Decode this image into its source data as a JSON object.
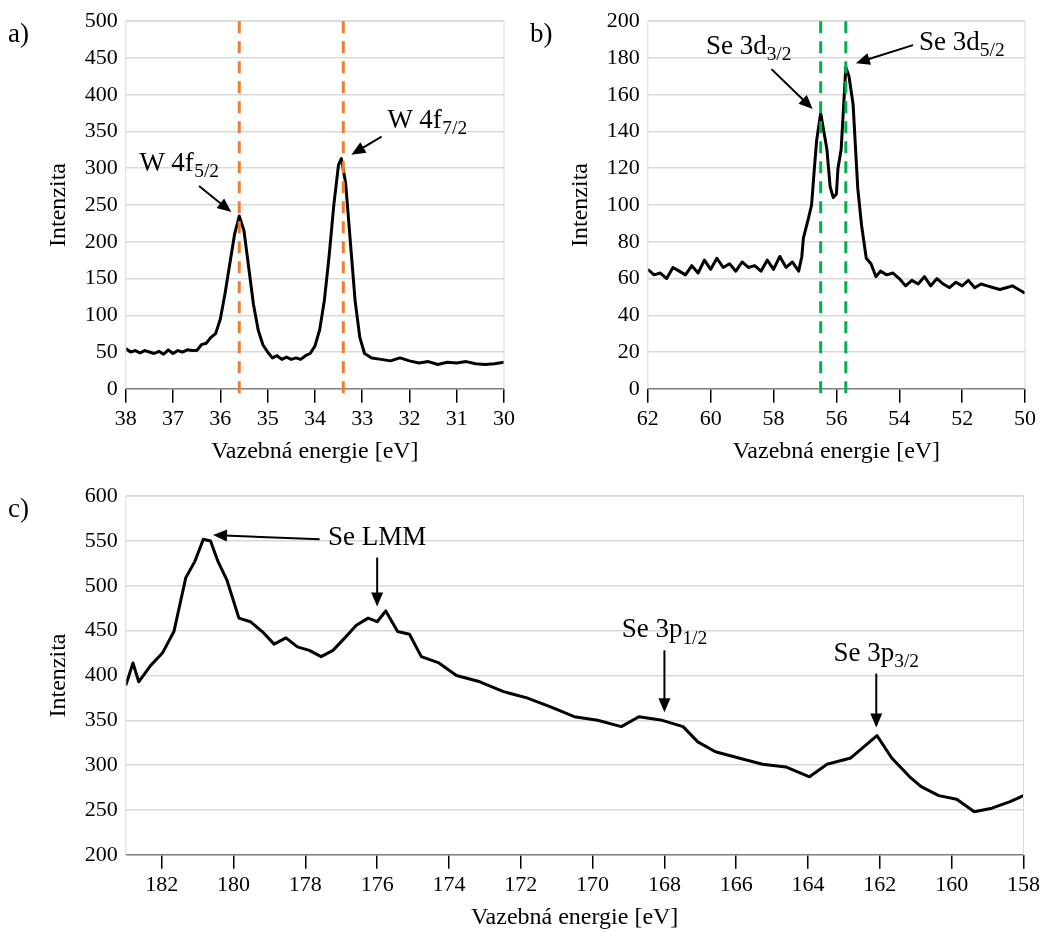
{
  "chart_data": [
    {
      "type": "line",
      "title": "a)",
      "xlabel": "Vazebná energie [eV]",
      "ylabel": "Intenzita",
      "grid": "y",
      "xlim": [
        38,
        30
      ],
      "xticks": [
        38,
        37,
        36,
        35,
        34,
        33,
        32,
        31,
        30
      ],
      "ylim": [
        0,
        500
      ],
      "yticks": [
        0,
        50,
        100,
        150,
        200,
        250,
        300,
        350,
        400,
        450,
        500
      ],
      "x": [
        38.0,
        37.9,
        37.8,
        37.7,
        37.6,
        37.5,
        37.4,
        37.3,
        37.2,
        37.1,
        37.0,
        36.9,
        36.8,
        36.7,
        36.6,
        36.5,
        36.4,
        36.3,
        36.2,
        36.1,
        36.0,
        35.9,
        35.8,
        35.7,
        35.6,
        35.5,
        35.4,
        35.3,
        35.2,
        35.1,
        35.0,
        34.9,
        34.8,
        34.7,
        34.6,
        34.5,
        34.4,
        34.3,
        34.2,
        34.1,
        34.0,
        33.9,
        33.8,
        33.7,
        33.6,
        33.5,
        33.44,
        33.35,
        33.25,
        33.15,
        33.05,
        32.95,
        32.8,
        32.6,
        32.4,
        32.2,
        32.0,
        31.8,
        31.6,
        31.4,
        31.2,
        31.0,
        30.8,
        30.6,
        30.4,
        30.2,
        30.0
      ],
      "series": [
        {
          "color": "#000000",
          "values": [
            55,
            50,
            52,
            49,
            52,
            50,
            48,
            51,
            47,
            53,
            48,
            52,
            50,
            53,
            52,
            52,
            60,
            62,
            70,
            75,
            95,
            130,
            170,
            210,
            235,
            215,
            165,
            115,
            80,
            60,
            50,
            42,
            45,
            40,
            43,
            40,
            42,
            40,
            45,
            48,
            58,
            80,
            120,
            180,
            250,
            305,
            313,
            280,
            200,
            120,
            70,
            48,
            42,
            40,
            38,
            42,
            38,
            35,
            37,
            33,
            36,
            35,
            37,
            34,
            33,
            34,
            36
          ]
        }
      ],
      "ref_lines": [
        {
          "axis": "x",
          "value": 35.6,
          "color": "#ed7d31",
          "line_style": "dashed"
        },
        {
          "axis": "x",
          "value": 33.4,
          "color": "#ed7d31",
          "line_style": "dashed"
        }
      ],
      "annotations": [
        {
          "text": "W 4f$_{5/2}$",
          "x": 35.6,
          "y": 235
        },
        {
          "text": "W 4f$_{7/2}$",
          "x": 33.44,
          "y": 313
        }
      ]
    },
    {
      "type": "line",
      "title": "b)",
      "xlabel": "Vazebná energie [eV]",
      "ylabel": "Intenzita",
      "grid": "y",
      "xlim": [
        62,
        50
      ],
      "xticks": [
        62,
        60,
        58,
        56,
        54,
        52,
        50
      ],
      "ylim": [
        0,
        200
      ],
      "yticks": [
        0,
        20,
        40,
        60,
        80,
        100,
        120,
        140,
        160,
        180,
        200
      ],
      "x": [
        62.0,
        61.8,
        61.6,
        61.4,
        61.2,
        61.0,
        60.8,
        60.6,
        60.4,
        60.2,
        60.0,
        59.8,
        59.6,
        59.4,
        59.2,
        59.0,
        58.8,
        58.6,
        58.4,
        58.2,
        58.0,
        57.8,
        57.6,
        57.4,
        57.2,
        57.1,
        57.05,
        56.9,
        56.79,
        56.7,
        56.63,
        56.5,
        56.4,
        56.3,
        56.2,
        56.1,
        56.0,
        55.95,
        55.85,
        55.7,
        55.6,
        55.47,
        55.32,
        55.2,
        55.05,
        54.9,
        54.74,
        54.6,
        54.4,
        54.2,
        54.0,
        53.8,
        53.6,
        53.4,
        53.2,
        53.0,
        52.8,
        52.6,
        52.4,
        52.2,
        52.0,
        51.8,
        51.6,
        51.4,
        51.2,
        51.0,
        50.8,
        50.6,
        50.4,
        50.2,
        50.0
      ],
      "series": [
        {
          "color": "#000000",
          "values": [
            65,
            62,
            63,
            60,
            66,
            64,
            62,
            67,
            63,
            70,
            65,
            71,
            66,
            68,
            64,
            69,
            66,
            67,
            64,
            70,
            65,
            72,
            66,
            69,
            64,
            72,
            82,
            92,
            100,
            120,
            135,
            150,
            140,
            130,
            110,
            104,
            106,
            120,
            130,
            175,
            170,
            155,
            109,
            89,
            71,
            68,
            61,
            64,
            62,
            63,
            60,
            56,
            59,
            57,
            61,
            56,
            60,
            57,
            55,
            58,
            56,
            59,
            55,
            57,
            56,
            55,
            54,
            55,
            56,
            54,
            52
          ]
        }
      ],
      "ref_lines": [
        {
          "axis": "x",
          "value": 56.5,
          "color": "#00b050",
          "line_style": "dashed"
        },
        {
          "axis": "x",
          "value": 55.7,
          "color": "#00b050",
          "line_style": "dashed"
        }
      ],
      "annotations": [
        {
          "text": "Se 3d$_{3/2}$",
          "x": 56.5,
          "y": 150
        },
        {
          "text": "Se 3d$_{5/2}$",
          "x": 55.7,
          "y": 175
        }
      ]
    },
    {
      "type": "line",
      "title": "c)",
      "xlabel": "Vazebná energie [eV]",
      "ylabel": "Intenzita",
      "grid": "y",
      "xlim": [
        183,
        158
      ],
      "xticks": [
        182,
        180,
        178,
        176,
        174,
        172,
        170,
        168,
        166,
        164,
        162,
        160,
        158
      ],
      "ylim": [
        200,
        600
      ],
      "yticks": [
        200,
        250,
        300,
        350,
        400,
        450,
        500,
        550,
        600
      ],
      "x": [
        183.0,
        182.8,
        182.64,
        182.31,
        181.98,
        181.66,
        181.33,
        181.08,
        180.84,
        180.64,
        180.43,
        180.18,
        179.85,
        179.53,
        179.2,
        178.87,
        178.54,
        178.22,
        177.89,
        177.56,
        177.23,
        176.9,
        176.58,
        176.25,
        176.0,
        175.76,
        175.43,
        175.1,
        174.77,
        174.28,
        173.79,
        173.14,
        172.48,
        171.83,
        171.17,
        170.51,
        169.86,
        169.2,
        168.71,
        168.06,
        167.48,
        167.07,
        166.58,
        165.93,
        165.27,
        164.62,
        163.96,
        163.47,
        162.81,
        162.4,
        162.08,
        161.67,
        161.17,
        160.85,
        160.36,
        159.86,
        159.37,
        158.88,
        158.39,
        158.0
      ],
      "series": [
        {
          "color": "#000000",
          "values": [
            389,
            414,
            393,
            411,
            425,
            449,
            509,
            527,
            552,
            550,
            527,
            506,
            464,
            460,
            449,
            435,
            442,
            432,
            428,
            421,
            428,
            442,
            456,
            464,
            460,
            472,
            449,
            446,
            421,
            414,
            400,
            393,
            382,
            375,
            365,
            354,
            350,
            343,
            354,
            350,
            343,
            326,
            315,
            308,
            301,
            298,
            287,
            301,
            308,
            322,
            333,
            308,
            287,
            276,
            266,
            262,
            248,
            252,
            259,
            266
          ]
        }
      ],
      "annotations": [
        {
          "text": "Se LMM",
          "x": 176,
          "y": 468
        },
        {
          "text": "Se 3p$_{1/2}$",
          "x": 168,
          "y": 350
        },
        {
          "text": "Se 3p$_{3/2}$",
          "x": 162.1,
          "y": 333
        }
      ]
    }
  ]
}
